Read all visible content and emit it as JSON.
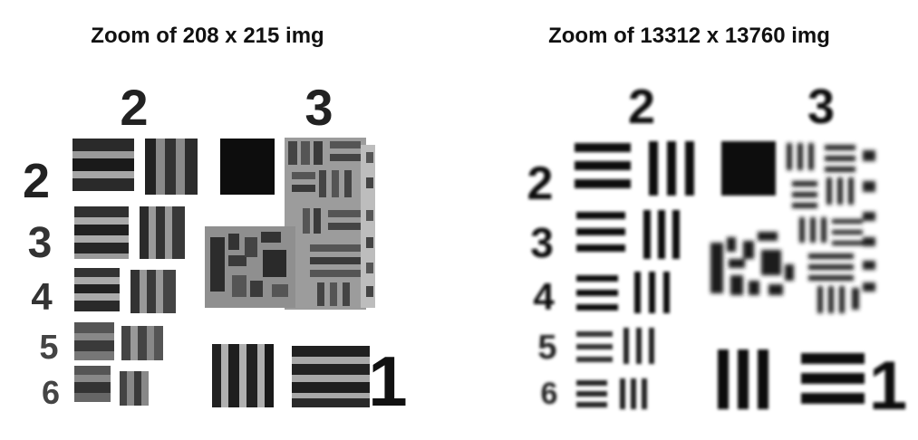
{
  "left_panel": {
    "caption": "Zoom of 208 x 215 img"
  },
  "right_panel": {
    "caption": "Zoom of 13312 x 13760 img"
  },
  "target": {
    "group_labels": [
      "2",
      "3"
    ],
    "element_labels": [
      "2",
      "3",
      "4",
      "5",
      "6"
    ],
    "small_labels": [
      "1",
      "2",
      "3",
      "4",
      "5",
      "6"
    ],
    "bottom_label": "1"
  }
}
